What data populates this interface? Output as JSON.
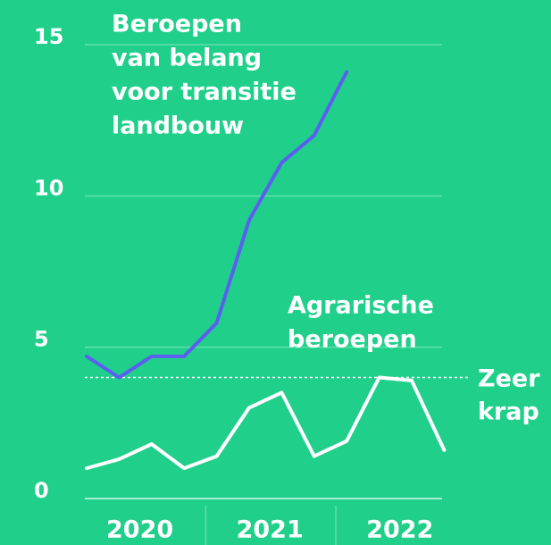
{
  "chart_data": {
    "type": "line",
    "categories": [
      null,
      null,
      null,
      null,
      null,
      null,
      null,
      null,
      null,
      null,
      null,
      null
    ],
    "year_labels": [
      "2020",
      "2021",
      "2022"
    ],
    "series": [
      {
        "label": [
          "Beroepen",
          "van belang",
          "voor transitie",
          "landbouw"
        ],
        "color": "#5b5ef0",
        "values": [
          4.7,
          4.0,
          4.7,
          4.7,
          5.8,
          9.2,
          11.1,
          12.0,
          14.1,
          null,
          null,
          null
        ]
      },
      {
        "label": [
          "Agrarische",
          "beroepen"
        ],
        "color": "#ffffff",
        "values": [
          1.0,
          1.3,
          1.8,
          1.0,
          1.4,
          3.0,
          3.5,
          1.4,
          1.9,
          4.0,
          3.9,
          1.6
        ]
      }
    ],
    "reference_line": {
      "value": 4,
      "label": [
        "Zeer",
        "krap"
      ]
    },
    "ylim": [
      0,
      15
    ],
    "yticks": [
      0,
      5,
      10,
      15
    ],
    "grid": true
  }
}
